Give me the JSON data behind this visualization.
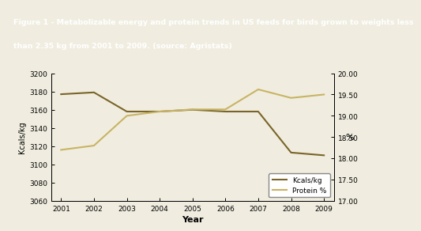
{
  "years": [
    2001,
    2002,
    2003,
    2004,
    2005,
    2006,
    2007,
    2008,
    2009
  ],
  "kcals": [
    3177,
    3179,
    3158,
    3158,
    3160,
    3158,
    3158,
    3113,
    3110
  ],
  "protein": [
    18.2,
    18.3,
    19.0,
    19.1,
    19.15,
    19.15,
    19.62,
    19.42,
    19.5
  ],
  "kcals_color": "#7a6428",
  "protein_color": "#c8b464",
  "title_line1": "Figure 1 - Metabolizable energy and protein trends in US feeds for birds grown to weights less",
  "title_line2": "than 2.35 kg from 2001 to 2009. (source: Agristats)",
  "title_bg": "#8B7330",
  "title_color": "#ffffff",
  "ylabel_left": "Kcals/kg",
  "ylabel_right": "%",
  "xlabel": "Year",
  "ylim_left": [
    3060,
    3200
  ],
  "ylim_right": [
    17.0,
    20.0
  ],
  "yticks_left": [
    3060,
    3080,
    3100,
    3120,
    3140,
    3160,
    3180,
    3200
  ],
  "yticks_right": [
    17.0,
    17.5,
    18.0,
    18.5,
    19.0,
    19.5,
    20.0
  ],
  "legend_labels": [
    "Kcals/kg",
    "Protein %"
  ],
  "bg_color": "#f0ede0",
  "plot_bg": "#f0ede0",
  "line_width": 1.5
}
